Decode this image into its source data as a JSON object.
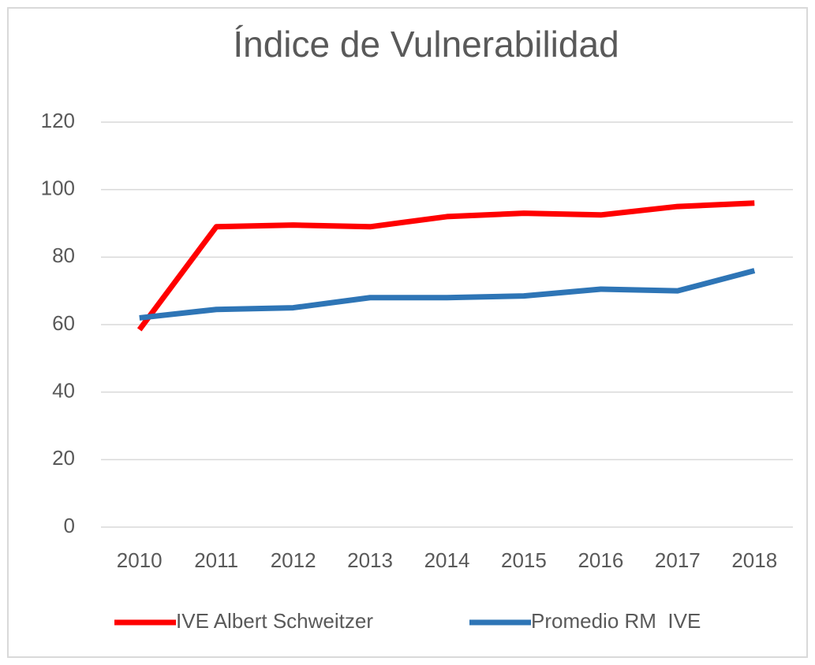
{
  "chart_data": {
    "type": "line",
    "title": "Índice de Vulnerabilidad",
    "categories": [
      "2010",
      "2011",
      "2012",
      "2013",
      "2014",
      "2015",
      "2016",
      "2017",
      "2018"
    ],
    "series": [
      {
        "name": "IVE Albert Schweitzer",
        "color": "#ff0000",
        "values": [
          58.5,
          89,
          89.5,
          89,
          92,
          93,
          92.5,
          95,
          96
        ]
      },
      {
        "name": "Promedio RM  IVE",
        "color": "#2e75b6",
        "values": [
          62,
          64.5,
          65,
          68,
          68,
          68.5,
          70.5,
          70,
          76
        ]
      }
    ],
    "ylim": [
      0,
      120
    ],
    "yticks": [
      0,
      20,
      40,
      60,
      80,
      100,
      120
    ],
    "grid": true,
    "legend": "bottom"
  }
}
